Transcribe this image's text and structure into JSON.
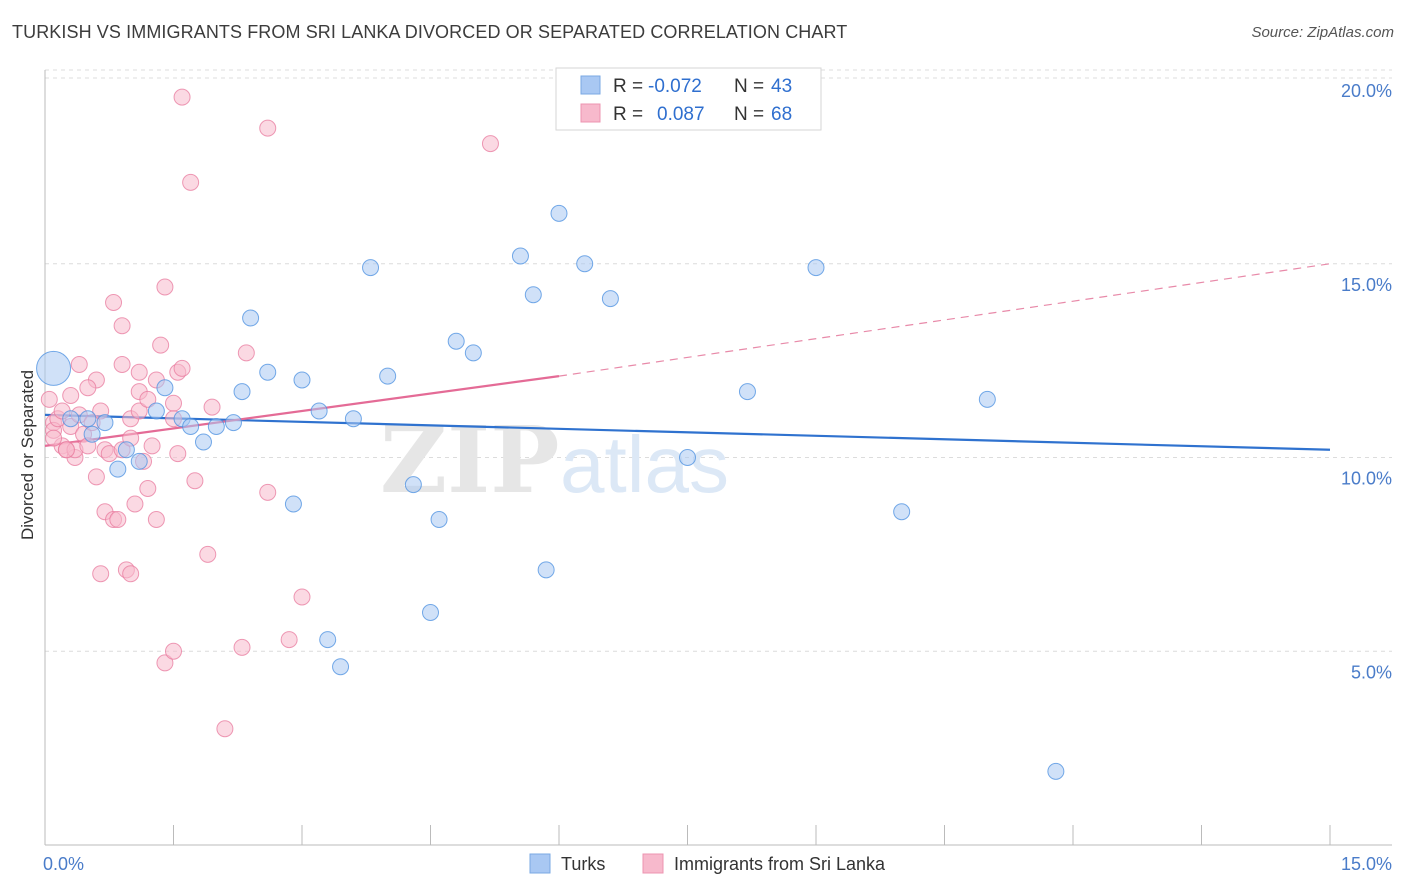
{
  "header": {
    "title": "TURKISH VS IMMIGRANTS FROM SRI LANKA DIVORCED OR SEPARATED CORRELATION CHART",
    "source": "Source: ZipAtlas.com"
  },
  "watermark": {
    "zip": "ZIP",
    "atlas": "atlas"
  },
  "legend": {
    "rows": [
      {
        "r_label": "R = ",
        "r_value": "-0.072",
        "n_label": "N = ",
        "n_value": "43",
        "color": "#a9c8f3"
      },
      {
        "r_label": "R = ",
        "r_value": "0.087",
        "n_label": "N = ",
        "n_value": "68",
        "color": "#f7b9cc"
      }
    ]
  },
  "bottom_legend": [
    {
      "label": "Turks",
      "color": "#a9c8f3"
    },
    {
      "label": "Immigrants from Sri Lanka",
      "color": "#f7b9cc"
    }
  ],
  "chart_data": {
    "type": "scatter",
    "title": "TURKISH VS IMMIGRANTS FROM SRI LANKA DIVORCED OR SEPARATED CORRELATION CHART",
    "xlabel": "",
    "ylabel": "Divorced or Separated",
    "xlim": [
      0,
      15
    ],
    "ylim": [
      0,
      20
    ],
    "x_tick_labels": [
      "0.0%",
      "15.0%"
    ],
    "y_ticks": [
      5,
      10,
      15,
      20
    ],
    "y_tick_labels": [
      "5.0%",
      "10.0%",
      "15.0%",
      "20.0%"
    ],
    "grid": true,
    "legend_position": "top-center",
    "series": [
      {
        "name": "Turks",
        "color": "#4a8fe0",
        "fill": "#a9c8f3",
        "r": -0.072,
        "n": 43,
        "trend": {
          "x": [
            0,
            15
          ],
          "y": [
            11.1,
            10.2
          ]
        },
        "points": [
          [
            0.1,
            12.3,
            1
          ],
          [
            0.5,
            11.0,
            0
          ],
          [
            0.55,
            10.6,
            0
          ],
          [
            0.7,
            10.9,
            0
          ],
          [
            0.85,
            9.7,
            0
          ],
          [
            0.95,
            10.2,
            0
          ],
          [
            1.1,
            9.9,
            0
          ],
          [
            1.3,
            11.2,
            0
          ],
          [
            1.4,
            11.8,
            0
          ],
          [
            1.6,
            11.0,
            0
          ],
          [
            1.7,
            10.8,
            0
          ],
          [
            1.85,
            10.4,
            0
          ],
          [
            2.0,
            10.8,
            0
          ],
          [
            2.2,
            10.9,
            0
          ],
          [
            2.3,
            11.7,
            0
          ],
          [
            2.4,
            13.6,
            0
          ],
          [
            2.6,
            12.2,
            0
          ],
          [
            2.9,
            8.8,
            0
          ],
          [
            3.0,
            12.0,
            0
          ],
          [
            3.2,
            11.2,
            0
          ],
          [
            3.3,
            5.3,
            0
          ],
          [
            3.45,
            4.6,
            0
          ],
          [
            3.6,
            11.0,
            0
          ],
          [
            3.8,
            14.9,
            0
          ],
          [
            4.0,
            12.1,
            0
          ],
          [
            4.3,
            9.3,
            0
          ],
          [
            4.5,
            6.0,
            0
          ],
          [
            4.6,
            8.4,
            0
          ],
          [
            4.8,
            13.0,
            0
          ],
          [
            5.0,
            12.7,
            0
          ],
          [
            5.55,
            15.2,
            0
          ],
          [
            5.7,
            14.2,
            0
          ],
          [
            5.85,
            7.1,
            0
          ],
          [
            6.0,
            16.3,
            0
          ],
          [
            6.3,
            15.0,
            0
          ],
          [
            6.6,
            14.1,
            0
          ],
          [
            7.5,
            10.0,
            0
          ],
          [
            8.2,
            11.7,
            0
          ],
          [
            9.0,
            14.9,
            0
          ],
          [
            10.0,
            8.6,
            0
          ],
          [
            11.0,
            11.5,
            0
          ],
          [
            11.8,
            1.9,
            0
          ],
          [
            0.3,
            11.0,
            0
          ]
        ]
      },
      {
        "name": "Immigrants from Sri Lanka",
        "color": "#e8799e",
        "fill": "#f7b9cc",
        "r": 0.087,
        "n": 68,
        "trend": {
          "x": [
            0,
            6
          ],
          "y": [
            10.3,
            12.1
          ]
        },
        "trend_dashed": {
          "x": [
            6,
            15
          ],
          "y": [
            12.1,
            15.0
          ]
        },
        "points": [
          [
            0.05,
            11.5,
            0
          ],
          [
            0.1,
            10.9,
            0
          ],
          [
            0.1,
            10.7,
            0
          ],
          [
            0.15,
            11.0,
            0
          ],
          [
            0.2,
            10.3,
            0
          ],
          [
            0.25,
            10.2,
            0
          ],
          [
            0.3,
            11.6,
            0
          ],
          [
            0.3,
            10.8,
            0
          ],
          [
            0.35,
            10.0,
            0
          ],
          [
            0.35,
            10.2,
            0
          ],
          [
            0.4,
            12.4,
            0
          ],
          [
            0.4,
            11.1,
            0
          ],
          [
            0.45,
            10.6,
            0
          ],
          [
            0.5,
            10.3,
            0
          ],
          [
            0.55,
            10.9,
            0
          ],
          [
            0.6,
            9.5,
            0
          ],
          [
            0.6,
            12.0,
            0
          ],
          [
            0.65,
            11.2,
            0
          ],
          [
            0.7,
            10.2,
            0
          ],
          [
            0.7,
            8.6,
            0
          ],
          [
            0.65,
            7.0,
            0
          ],
          [
            0.75,
            10.1,
            0
          ],
          [
            0.8,
            8.4,
            0
          ],
          [
            0.8,
            14.0,
            0
          ],
          [
            0.85,
            8.4,
            0
          ],
          [
            0.9,
            10.2,
            0
          ],
          [
            0.9,
            12.4,
            0
          ],
          [
            0.9,
            13.4,
            0
          ],
          [
            0.95,
            7.1,
            0
          ],
          [
            1.0,
            7.0,
            0
          ],
          [
            1.0,
            10.5,
            0
          ],
          [
            1.0,
            11.0,
            0
          ],
          [
            1.05,
            8.8,
            0
          ],
          [
            1.1,
            11.2,
            0
          ],
          [
            1.1,
            12.2,
            0
          ],
          [
            1.1,
            11.7,
            0
          ],
          [
            1.15,
            9.9,
            0
          ],
          [
            1.2,
            11.5,
            0
          ],
          [
            1.2,
            9.2,
            0
          ],
          [
            1.3,
            12.0,
            0
          ],
          [
            1.3,
            8.4,
            0
          ],
          [
            1.35,
            12.9,
            0
          ],
          [
            1.4,
            14.4,
            0
          ],
          [
            1.5,
            11.4,
            0
          ],
          [
            1.5,
            11.0,
            0
          ],
          [
            1.55,
            10.1,
            0
          ],
          [
            1.55,
            12.2,
            0
          ],
          [
            1.6,
            12.3,
            0
          ],
          [
            1.7,
            17.1,
            0
          ],
          [
            1.75,
            9.4,
            0
          ],
          [
            1.6,
            19.3,
            0
          ],
          [
            1.9,
            7.5,
            0
          ],
          [
            1.95,
            11.3,
            0
          ],
          [
            2.1,
            3.0,
            0
          ],
          [
            2.3,
            5.1,
            0
          ],
          [
            2.35,
            12.7,
            0
          ],
          [
            2.6,
            18.5,
            0
          ],
          [
            2.6,
            9.1,
            0
          ],
          [
            2.85,
            5.3,
            0
          ],
          [
            3.0,
            6.4,
            0
          ],
          [
            1.4,
            4.7,
            0
          ],
          [
            1.5,
            5.0,
            0
          ],
          [
            5.2,
            18.1,
            0
          ],
          [
            0.2,
            11.2,
            0
          ],
          [
            0.25,
            10.2,
            0
          ],
          [
            0.1,
            10.5,
            0
          ],
          [
            0.5,
            11.8,
            0
          ],
          [
            1.25,
            10.3,
            0
          ]
        ]
      }
    ]
  }
}
